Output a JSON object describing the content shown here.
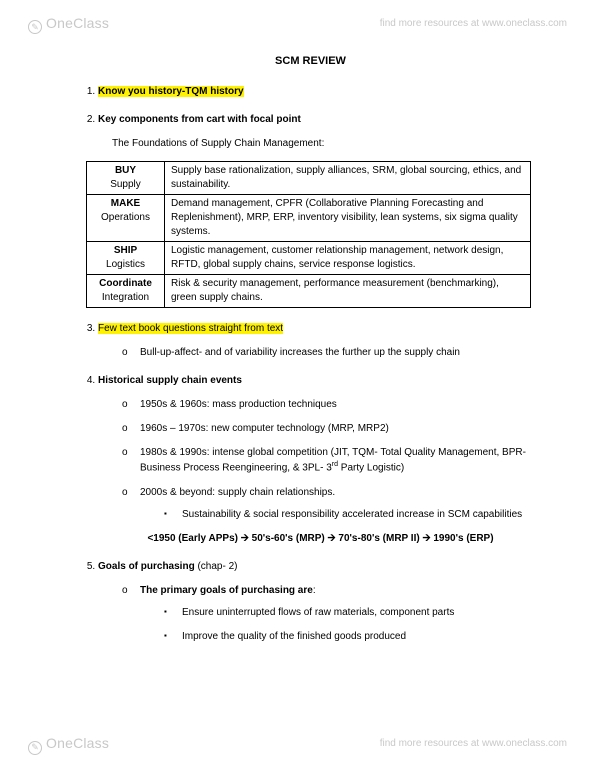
{
  "brand": {
    "one": "One",
    "class": "Class",
    "tagline": "find more resources at www.oneclass.com"
  },
  "doc": {
    "title": "SCM REVIEW",
    "item1": "Know you history-TQM history",
    "item2": "Key components from cart with focal point",
    "foundationsHeading": "The Foundations of Supply Chain Management:",
    "table": {
      "r1": {
        "cat": "BUY",
        "sub": "Supply",
        "desc": "Supply base rationalization, supply alliances, SRM, global sourcing, ethics, and sustainability."
      },
      "r2": {
        "cat": "MAKE",
        "sub": "Operations",
        "desc": "Demand management, CPFR (Collaborative Planning Forecasting and Replenishment), MRP, ERP, inventory visibility, lean systems, six sigma quality systems."
      },
      "r3": {
        "cat": "SHIP",
        "sub": "Logistics",
        "desc": "Logistic management, customer relationship management, network design, RFTD, global supply chains, service response logistics."
      },
      "r4": {
        "cat": "Coordinate",
        "sub": "Integration",
        "desc": "Risk & security management, performance measurement (benchmarking), green supply chains."
      }
    },
    "item3": "Few text book questions straight from text",
    "item3_b1": "Bull-up-affect- and of variability increases the further up the supply chain",
    "item4": "Historical supply chain events",
    "hist": {
      "b1": "1950s & 1960s: mass production techniques",
      "b2": "1960s – 1970s: new computer technology (MRP, MRP2)",
      "b3a": "1980s & 1990s: intense global competition (JIT, TQM- Total Quality Management, BPR- Business Process Reengineering, & 3PL- 3",
      "b3b": " Party Logistic)",
      "b4": "2000s & beyond: supply chain relationships.",
      "b4s1": "Sustainability & social responsibility accelerated increase in SCM capabilities"
    },
    "timeline": "<1950 (Early APPs) 🡪 50's-60's (MRP) 🡪 70's-80's (MRP II) 🡪 1990's (ERP)",
    "item5": "Goals of purchasing",
    "item5chap": " (chap- 2)",
    "goals": {
      "head": "The primary goals of purchasing are",
      "g1": "Ensure uninterrupted flows of raw materials, component parts",
      "g2": "Improve the quality of the finished goods produced"
    }
  }
}
